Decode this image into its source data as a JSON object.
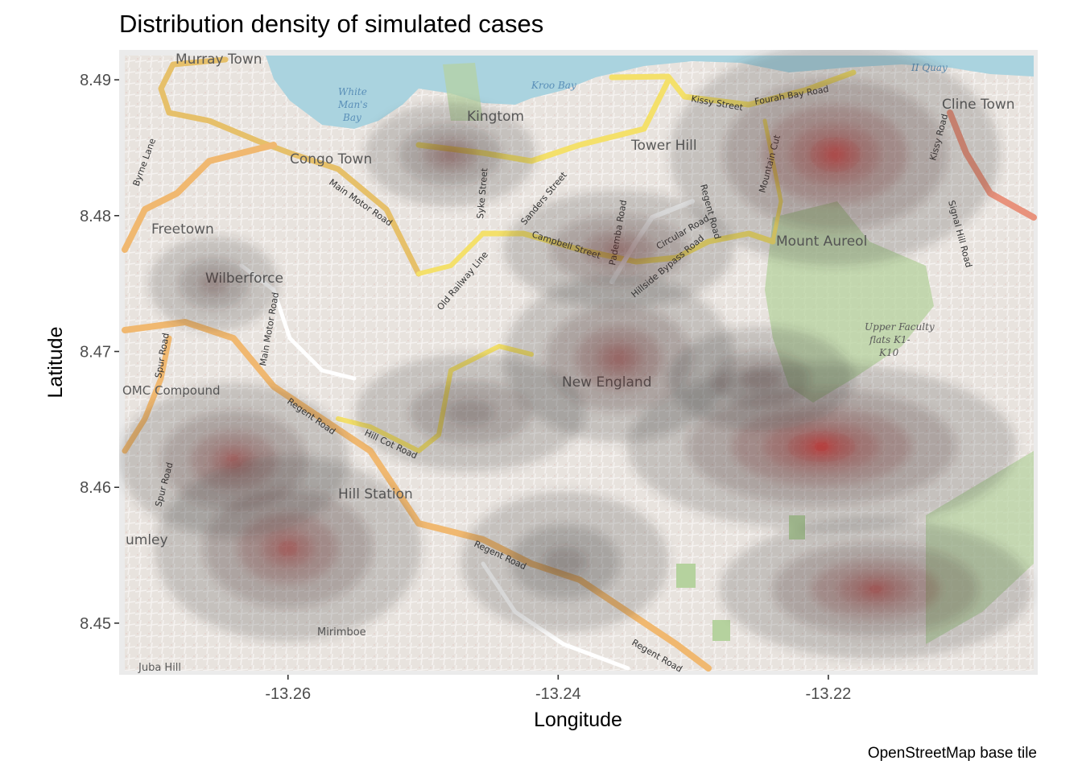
{
  "chart_data": {
    "type": "heatmap",
    "title": "Distribution density of simulated cases",
    "xlabel": "Longitude",
    "ylabel": "Latitude",
    "caption": "OpenStreetMap base tile",
    "xlim": [
      -13.2725,
      -13.2045
    ],
    "ylim": [
      8.4462,
      8.4922
    ],
    "x_ticks": [
      -13.26,
      -13.24,
      -13.22
    ],
    "x_tick_labels": [
      "-13.26",
      "-13.24",
      "-13.22"
    ],
    "y_ticks": [
      8.45,
      8.46,
      8.47,
      8.48,
      8.49
    ],
    "y_tick_labels": [
      "8.45",
      "8.46",
      "8.47",
      "8.48",
      "8.49"
    ],
    "basemap": "OpenStreetMap",
    "fill_low": "#333333",
    "fill_high": "#ff0000",
    "density_peaks": [
      {
        "lon": -13.2195,
        "lat": 8.4845,
        "rx": 0.0072,
        "ry": 0.0048,
        "level": 0.82
      },
      {
        "lon": -13.2205,
        "lat": 8.463,
        "rx": 0.0085,
        "ry": 0.0036,
        "level": 1.0
      },
      {
        "lon": -13.2165,
        "lat": 8.4525,
        "rx": 0.0068,
        "ry": 0.003,
        "level": 0.62
      },
      {
        "lon": -13.264,
        "lat": 8.462,
        "rx": 0.005,
        "ry": 0.0033,
        "level": 0.55
      },
      {
        "lon": -13.26,
        "lat": 8.4555,
        "rx": 0.0058,
        "ry": 0.004,
        "level": 0.57
      },
      {
        "lon": -13.2355,
        "lat": 8.4695,
        "rx": 0.005,
        "ry": 0.0036,
        "level": 0.45
      },
      {
        "lon": -13.2355,
        "lat": 8.4775,
        "rx": 0.005,
        "ry": 0.0025,
        "level": 0.32
      },
      {
        "lon": -13.248,
        "lat": 8.4845,
        "rx": 0.0037,
        "ry": 0.0022,
        "level": 0.28
      },
      {
        "lon": -13.2655,
        "lat": 8.475,
        "rx": 0.0028,
        "ry": 0.002,
        "level": 0.15
      },
      {
        "lon": -13.2465,
        "lat": 8.4655,
        "rx": 0.005,
        "ry": 0.0025,
        "level": 0.12
      },
      {
        "lon": -13.225,
        "lat": 8.468,
        "rx": 0.004,
        "ry": 0.0022,
        "level": 0.14
      },
      {
        "lon": -13.2395,
        "lat": 8.4545,
        "rx": 0.0045,
        "ry": 0.003,
        "level": 0.06
      }
    ]
  },
  "map_labels": {
    "murray_town": "Murray Town",
    "white_mans_bay_1": "White",
    "white_mans_bay_2": "Man's",
    "white_mans_bay_3": "Bay",
    "kroo_bay": "Kroo Bay",
    "kingtom": "Kingtom",
    "ii_quay": "II Quay",
    "cline_town": "Cline Town",
    "congo_town": "Congo Town",
    "tower_hill": "Tower Hill",
    "freetown": "Freetown",
    "wilberforce": "Wilberforce",
    "mount_aureol": "Mount Aureol",
    "new_england": "New England",
    "omc_compound": "OMC Compound",
    "hill_station": "Hill Station",
    "lumley": "umley",
    "mirimboe": "Mirimboe",
    "juba_hill": "Juba Hill",
    "upper_faculty_1": "Upper Faculty",
    "upper_faculty_2": "flats K1-",
    "upper_faculty_3": "K10"
  },
  "road_labels": {
    "main_motor_road_1": "Main Motor Road",
    "main_motor_road_2": "Main Motor Road",
    "kissy_street": "Kissy Street",
    "fourah_bay_road": "Fourah Bay Road",
    "campbell_street": "Campbell Street",
    "sanders_street": "Sanders Street",
    "syke_street": "Syke Street",
    "old_railway_line": "Old Railway Line",
    "circular_road": "Circular Road",
    "hillside_bypass_road": "Hillside Bypass Road",
    "regent_road_1": "Regent Road",
    "regent_road_2": "Regent Road",
    "regent_road_3": "Regent Road",
    "regent_road_4": "Regent Road",
    "hill_cot_road": "Hill Cot Road",
    "spur_road_1": "Spur Road",
    "spur_road_2": "Spur Road",
    "byrne_lane": "Byrne Lane",
    "pademba_road": "Pademba Road",
    "mountain_cut": "Mountain Cut",
    "kissy_road": "Kissy Road",
    "signal_hill_road": "Signal Hill Road"
  }
}
